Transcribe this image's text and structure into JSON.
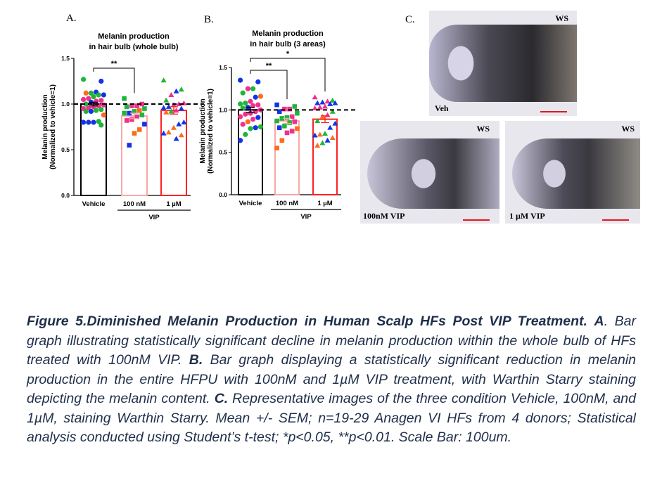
{
  "panels": {
    "a": "A.",
    "b": "B.",
    "c": "C."
  },
  "palette": {
    "g": "#1fb53a",
    "b": "#1233e6",
    "p": "#f0308c",
    "o": "#ff6a1a"
  },
  "chart_data": [
    {
      "type": "bar",
      "title": [
        "Melanin production",
        "in hair bulb (whole bulb)"
      ],
      "ylabel": [
        "Melanin production",
        "(Normalized to vehicle=1)"
      ],
      "ylim": [
        0,
        1.5
      ],
      "yticks": [
        "0.0",
        "0.5",
        "1.0",
        "1.5"
      ],
      "reference_line": 1.0,
      "categories": [
        "Vehicle",
        "100 nM",
        "1 µM"
      ],
      "group_label": "VIP",
      "means": [
        1.0,
        0.87,
        0.93
      ],
      "sem": [
        0.02,
        0.03,
        0.04
      ],
      "bar_colors": [
        "#000000",
        "#f7a9a9",
        "#ff2222"
      ],
      "markers": [
        "circle",
        "square",
        "triangle"
      ],
      "points": [
        {
          "v": [
            1.27,
            1.25,
            1.13,
            1.12,
            1.12,
            1.1,
            1.1,
            1.08,
            1.06,
            1.05,
            1.04,
            1.03,
            1.02,
            1.0,
            0.99,
            0.98,
            0.97,
            0.96,
            0.95,
            0.94,
            0.93,
            0.92,
            0.92,
            0.88,
            0.81,
            0.8,
            0.8,
            0.8,
            0.77
          ],
          "c": [
            "g",
            "b",
            "b",
            "g",
            "o",
            "b",
            "g",
            "g",
            "p",
            "p",
            "p",
            "p",
            "b",
            "g",
            "p",
            "p",
            "p",
            "p",
            "p",
            "g",
            "g",
            "b",
            "g",
            "o",
            "g",
            "b",
            "b",
            "b",
            "g"
          ]
        },
        {
          "v": [
            1.06,
            1.0,
            0.98,
            0.98,
            0.97,
            0.95,
            0.93,
            0.92,
            0.9,
            0.9,
            0.88,
            0.86,
            0.83,
            0.82,
            0.78,
            0.72,
            0.68,
            0.55
          ],
          "c": [
            "g",
            "p",
            "p",
            "p",
            "g",
            "g",
            "o",
            "g",
            "b",
            "g",
            "g",
            "p",
            "p",
            "p",
            "b",
            "o",
            "o",
            "b"
          ]
        },
        {
          "v": [
            1.26,
            1.16,
            1.14,
            1.1,
            1.04,
            1.01,
            1.0,
            0.99,
            0.97,
            0.96,
            0.95,
            0.93,
            0.92,
            0.91,
            0.8,
            0.78,
            0.74,
            0.69,
            0.68,
            0.66,
            0.62
          ],
          "c": [
            "g",
            "g",
            "b",
            "p",
            "g",
            "p",
            "p",
            "p",
            "b",
            "b",
            "b",
            "p",
            "g",
            "o",
            "b",
            "b",
            "o",
            "o",
            "b",
            "o",
            "b"
          ]
        }
      ],
      "significance": [
        {
          "from": "Vehicle",
          "to": "100 nM",
          "label": "**"
        }
      ]
    },
    {
      "type": "bar",
      "title": [
        "Melanin production",
        "in hair bulb (3 areas)"
      ],
      "ylabel": [
        "Melanin production",
        "(Normalized to vehicle=1)"
      ],
      "ylim": [
        0,
        1.5
      ],
      "yticks": [
        "0.0",
        "0.5",
        "1.0",
        "1.5"
      ],
      "reference_line": 1.0,
      "categories": [
        "Vehicle",
        "100 nM",
        "1 µM"
      ],
      "group_label": "VIP",
      "means": [
        1.0,
        0.87,
        0.89
      ],
      "sem": [
        0.03,
        0.03,
        0.04
      ],
      "bar_colors": [
        "#000000",
        "#f7a9a9",
        "#ff2222"
      ],
      "markers": [
        "circle",
        "square",
        "triangle"
      ],
      "points": [
        {
          "v": [
            1.35,
            1.33,
            1.25,
            1.25,
            1.2,
            1.16,
            1.15,
            1.1,
            1.08,
            1.07,
            1.06,
            1.05,
            1.03,
            1.02,
            1.0,
            0.98,
            0.96,
            0.95,
            0.92,
            0.91,
            0.89,
            0.86,
            0.83,
            0.8,
            0.79,
            0.78,
            0.71,
            0.64
          ],
          "c": [
            "b",
            "b",
            "g",
            "p",
            "g",
            "o",
            "b",
            "p",
            "g",
            "g",
            "p",
            "p",
            "b",
            "g",
            "p",
            "p",
            "p",
            "p",
            "p",
            "b",
            "p",
            "o",
            "p",
            "g",
            "b",
            "g",
            "g",
            "b"
          ]
        },
        {
          "v": [
            1.06,
            1.04,
            1.01,
            1.01,
            0.98,
            0.96,
            0.92,
            0.91,
            0.9,
            0.87,
            0.86,
            0.85,
            0.81,
            0.79,
            0.78,
            0.75,
            0.73,
            0.64,
            0.55
          ],
          "c": [
            "b",
            "g",
            "p",
            "p",
            "b",
            "g",
            "p",
            "g",
            "g",
            "g",
            "p",
            "g",
            "g",
            "b",
            "o",
            "p",
            "p",
            "o",
            "o"
          ]
        },
        {
          "v": [
            1.15,
            1.11,
            1.1,
            1.09,
            1.08,
            1.08,
            1.07,
            1.04,
            1.03,
            1.02,
            0.98,
            0.94,
            0.92,
            0.87,
            0.84,
            0.79,
            0.72,
            0.71,
            0.7,
            0.67,
            0.64,
            0.61,
            0.58
          ],
          "c": [
            "p",
            "g",
            "p",
            "b",
            "b",
            "b",
            "b",
            "p",
            "p",
            "p",
            "g",
            "p",
            "o",
            "g",
            "b",
            "b",
            "g",
            "o",
            "b",
            "o",
            "b",
            "g",
            "o"
          ]
        }
      ],
      "significance": [
        {
          "from": "Vehicle",
          "to": "100 nM",
          "label": "**"
        },
        {
          "from": "Vehicle",
          "to": "1 µM",
          "label": "*"
        }
      ]
    }
  ],
  "images": {
    "ws": "WS",
    "veh": "Veh",
    "nm": "100nM VIP",
    "um": "1 µM VIP"
  },
  "caption": {
    "title": "Figure 5.Diminished Melanin Production in Human Scalp HFs Post VIP Treatment.",
    "a_label": "A",
    "a_text": ". Bar graph illustrating statistically significant decline in melanin production within the whole bulb of HFs treated with 100nM VIP. ",
    "b_label": "B.",
    "b_text": " Bar graph displaying a statistically significant reduction in melanin production in the entire HFPU with 100nM and 1µM VIP treatment, with Warthin Starry staining depicting the melanin content. ",
    "c_label": "C.",
    "c_text": " Representative images of the three condition Vehicle, 100nM, and 1µM, staining Warthin Starry. Mean +/- SEM; n=19-29 Anagen VI HFs from 4 donors; Statistical analysis conducted using Student’s t-test; *p<0.05, **p<0.01. Scale Bar: 100um."
  }
}
